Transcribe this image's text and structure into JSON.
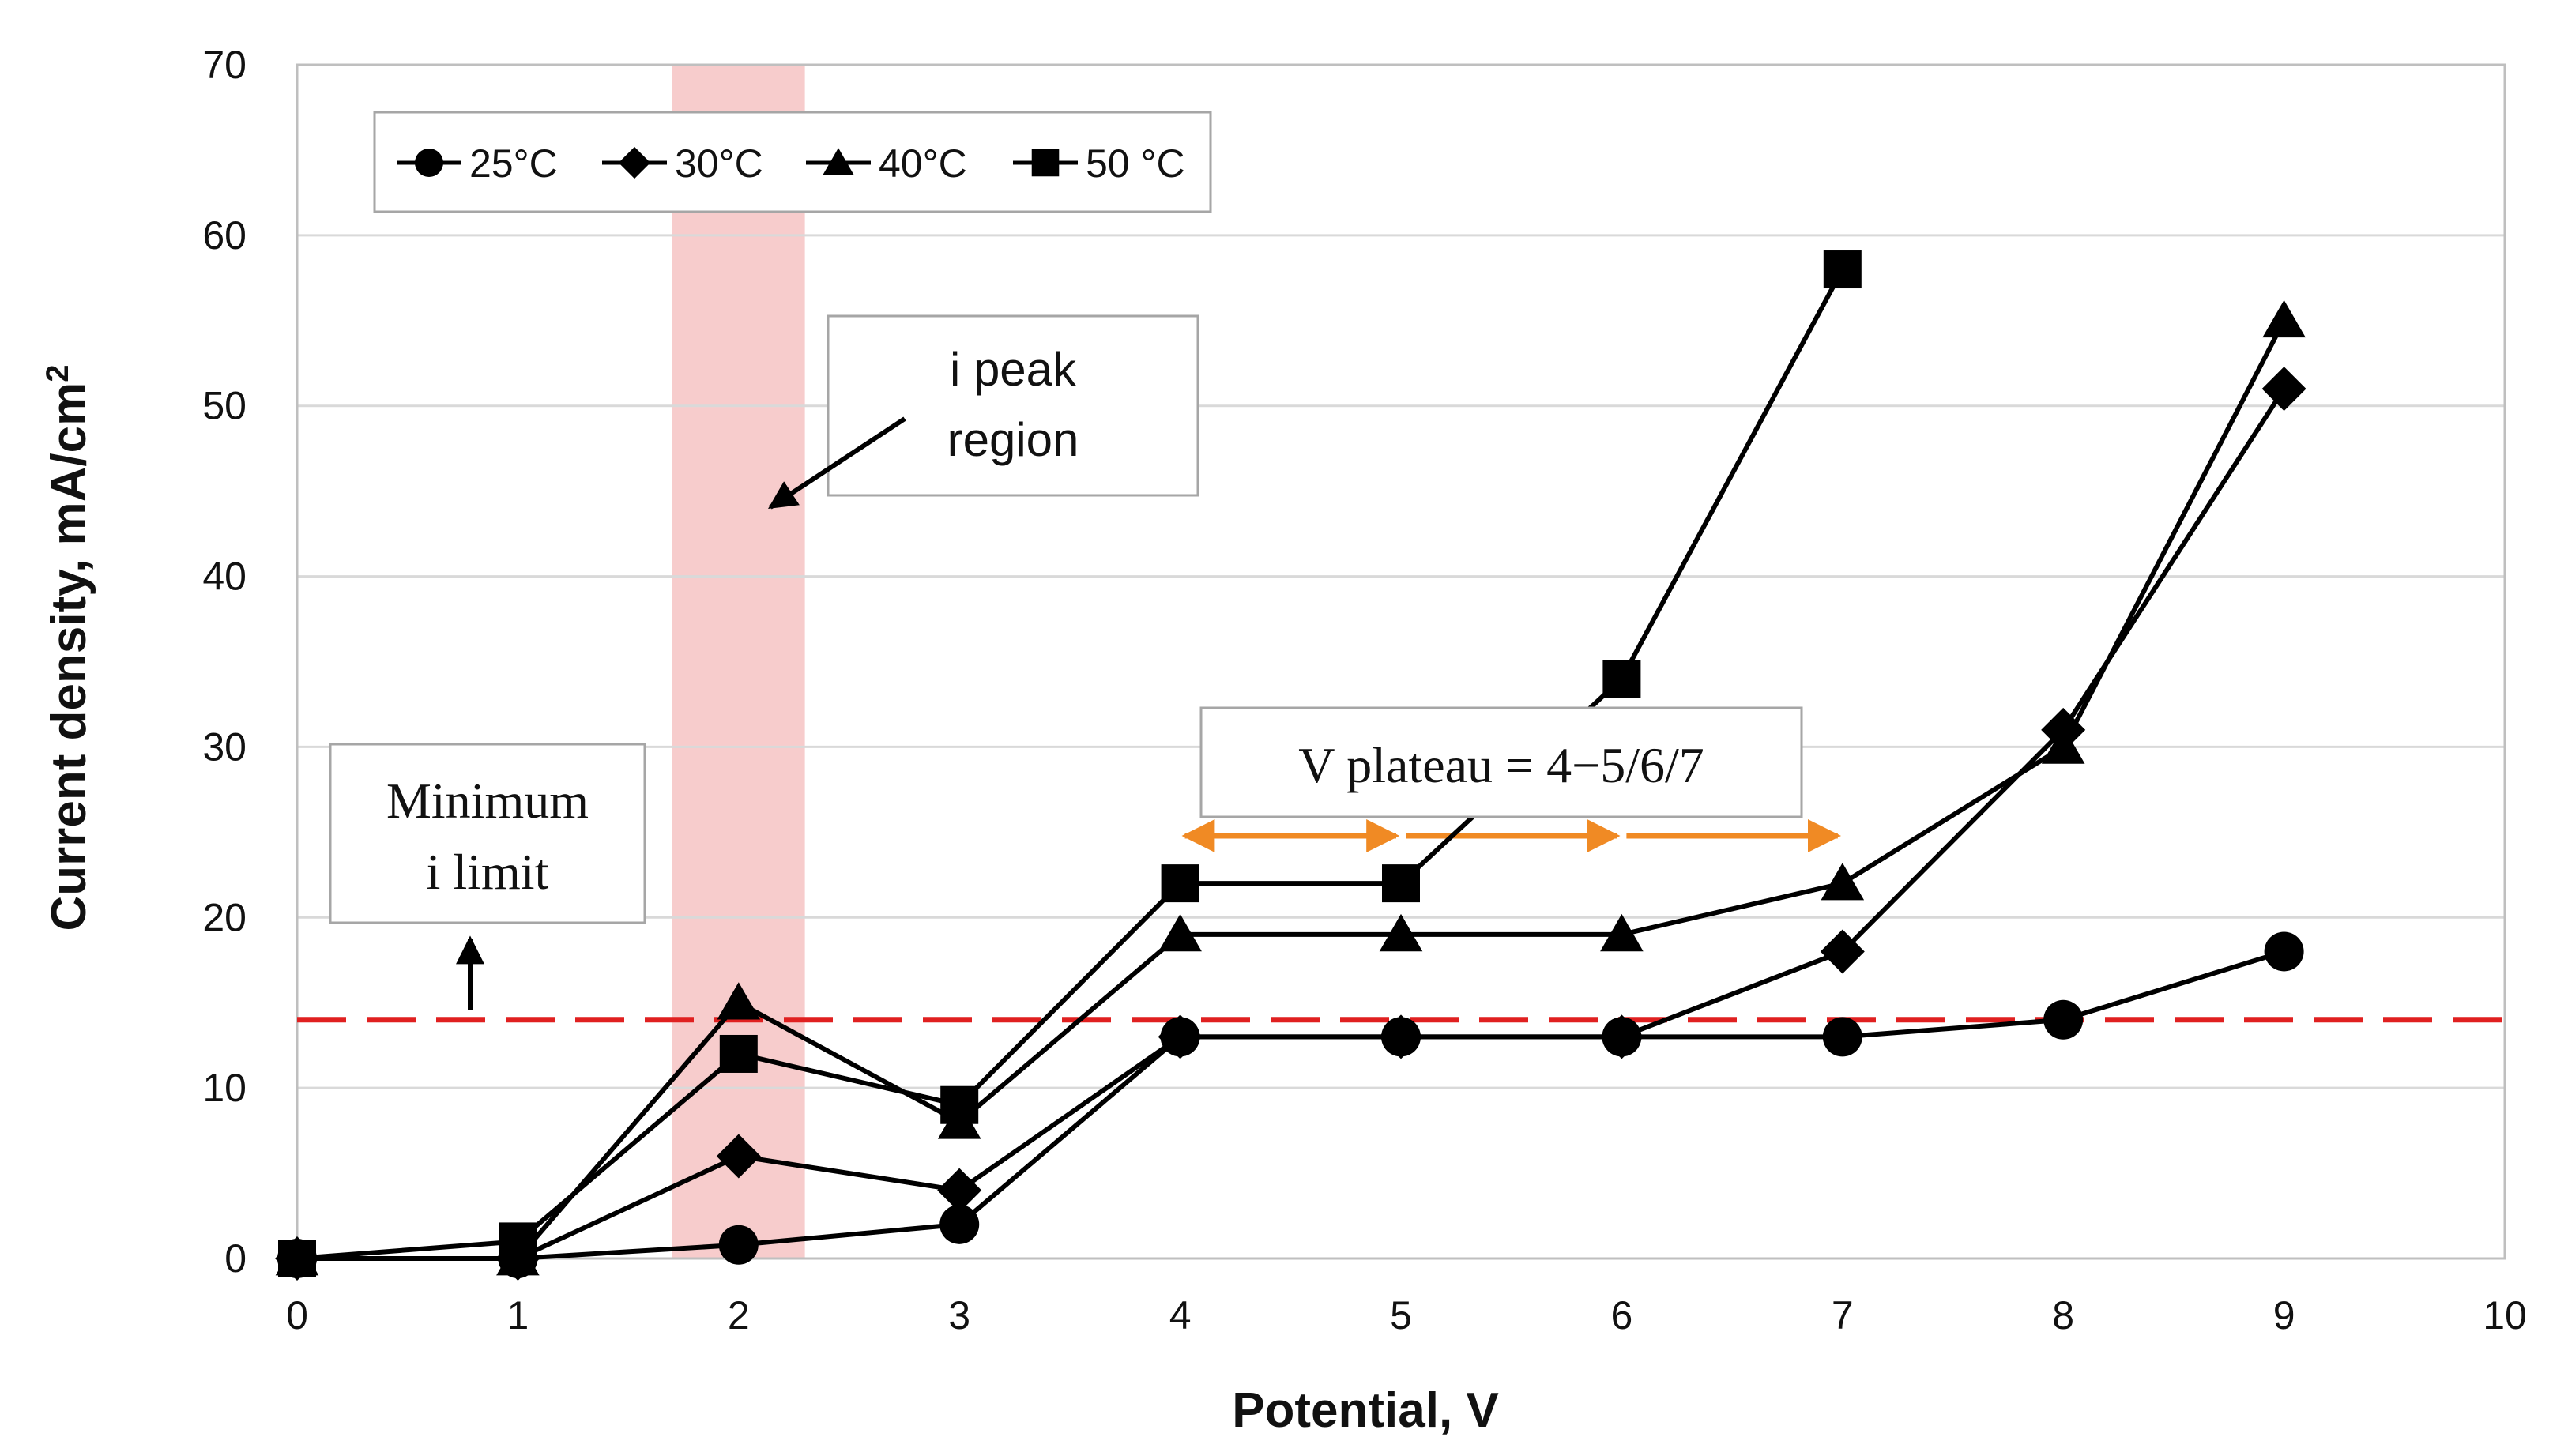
{
  "colors": {
    "series": "#000000",
    "threshold": "#e02020",
    "plateau_arrow": "#f08a24",
    "peak_band": "#f7cccc",
    "grid": "#d9d9d9",
    "frame": "#bfbfbf"
  },
  "chart_data": {
    "type": "line",
    "xlabel": "Potential, V",
    "ylabel": "Current density, mA/cm",
    "ylabel_superscript": "2",
    "xlim": [
      0,
      10
    ],
    "ylim": [
      0,
      70
    ],
    "xticks": [
      0,
      1,
      2,
      3,
      4,
      5,
      6,
      7,
      8,
      9,
      10
    ],
    "yticks": [
      0,
      10,
      20,
      30,
      40,
      50,
      60,
      70
    ],
    "grid": "horizontal",
    "legend_position": "top-left",
    "series": [
      {
        "name": "25°C",
        "marker": "circle",
        "x": [
          0,
          1,
          2,
          3,
          4,
          5,
          6,
          7,
          8,
          9
        ],
        "values": [
          0,
          0,
          0.8,
          2,
          13,
          13,
          13,
          13,
          14,
          18
        ]
      },
      {
        "name": "30°C",
        "marker": "diamond",
        "x": [
          0,
          1,
          2,
          3,
          4,
          5,
          6,
          7,
          8,
          9
        ],
        "values": [
          0,
          0,
          6,
          4,
          13,
          13,
          13,
          18,
          31,
          51
        ]
      },
      {
        "name": "40°C",
        "marker": "triangle",
        "x": [
          0,
          1,
          2,
          3,
          4,
          5,
          6,
          7,
          8,
          9
        ],
        "values": [
          0,
          0,
          15,
          8,
          19,
          19,
          19,
          22,
          30,
          55
        ]
      },
      {
        "name": "50 °C",
        "marker": "square",
        "x": [
          0,
          1,
          2,
          3,
          4,
          5,
          6,
          7
        ],
        "values": [
          0,
          1,
          12,
          9,
          22,
          22,
          34,
          58
        ]
      }
    ],
    "threshold": {
      "value": 14,
      "style": "dashed"
    },
    "peak_region": {
      "x_from": 1.7,
      "x_to": 2.3
    },
    "plateau_arrows": [
      4,
      5,
      6,
      7
    ],
    "annotations": {
      "peak": {
        "line1": "i peak",
        "line2": "region"
      },
      "min_limit": {
        "line1": "Minimum",
        "line2": "i limit"
      },
      "plateau": "V plateau = 4−5/6/7"
    }
  }
}
